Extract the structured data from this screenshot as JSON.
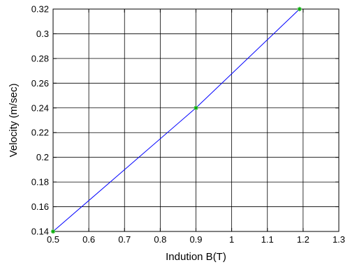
{
  "chart_data": {
    "type": "line",
    "xlabel": "Indution B(T)",
    "ylabel": "Velocity (m/sec)",
    "xlim": [
      0.5,
      1.3
    ],
    "ylim": [
      0.14,
      0.32
    ],
    "xticks": [
      0.5,
      0.6,
      0.7,
      0.8,
      0.9,
      1,
      1.1,
      1.2,
      1.3
    ],
    "yticks": [
      0.14,
      0.16,
      0.18,
      0.2,
      0.22,
      0.24,
      0.26,
      0.28,
      0.3,
      0.32
    ],
    "xtick_labels": [
      "0.5",
      "0.6",
      "0.7",
      "0.8",
      "0.9",
      "1",
      "1.1",
      "1.2",
      "1.3"
    ],
    "ytick_labels": [
      "0.14",
      "0.16",
      "0.18",
      "0.2",
      "0.22",
      "0.24",
      "0.26",
      "0.28",
      "0.3",
      "0.32"
    ],
    "grid": true,
    "series": [
      {
        "x": [
          0.5,
          0.9,
          1.19
        ],
        "y": [
          0.14,
          0.24,
          0.32
        ],
        "line_color": "#0000ff",
        "marker": "*",
        "marker_color": "#00aa00"
      }
    ]
  }
}
